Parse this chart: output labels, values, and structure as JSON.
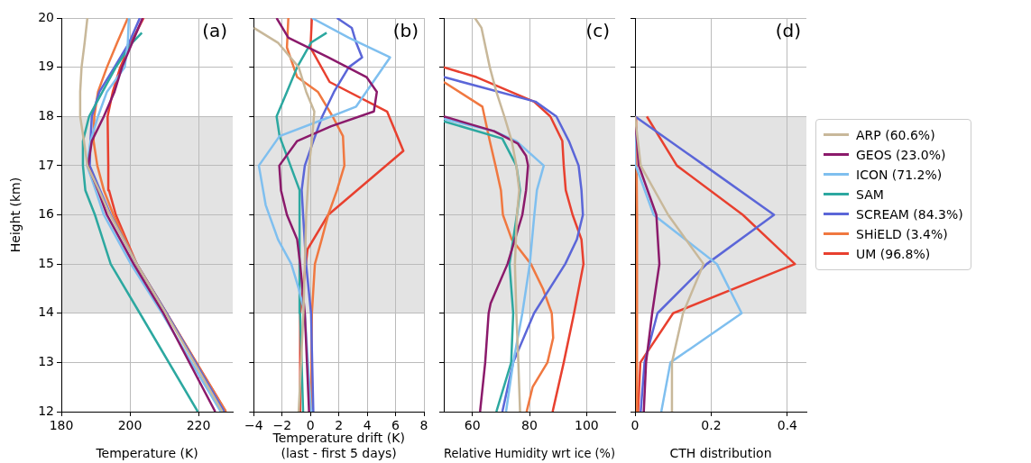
{
  "chart_data": [
    {
      "type": "line",
      "xlabel": "Temperature (K)",
      "ylabel": "Height (km)",
      "xlim": [
        180,
        230
      ],
      "xticks": [
        180,
        200,
        220
      ],
      "ylim": [
        12,
        20
      ],
      "yticks": [
        12,
        13,
        14,
        15,
        16,
        17,
        18,
        19,
        20
      ],
      "grid": true,
      "marker": "none",
      "bands": [
        {
          "axis": "y",
          "from": 14,
          "to": 18,
          "color": "#e3e3e3"
        }
      ],
      "annotations": [
        "(a)"
      ],
      "series": [
        {
          "color": "#c8b89a",
          "x": [
            227,
            210.5,
            202,
            194.2,
            191,
            187.6,
            186.6,
            185.5,
            185.5,
            185.9,
            186.8,
            187.6
          ],
          "values": [
            12,
            14,
            15,
            16,
            16.5,
            17,
            17.5,
            18,
            18.5,
            19,
            19.5,
            20
          ]
        },
        {
          "color": "#8b1a6b",
          "x": [
            224.9,
            209.8,
            201.1,
            193.3,
            190.7,
            187.8,
            188.9,
            192.4,
            195.5,
            197.7,
            200.7,
            203.7
          ],
          "values": [
            12,
            14,
            15,
            16,
            16.5,
            17,
            17.5,
            18,
            18.5,
            19,
            19.5,
            20
          ]
        },
        {
          "color": "#7fbfef",
          "x": [
            226.5,
            209.4,
            200.3,
            192.4,
            190,
            187.5,
            188.5,
            190.7,
            193.3,
            198.5,
            199.4,
            199.7
          ],
          "values": [
            12,
            14,
            15,
            16,
            16.5,
            17,
            17.5,
            18,
            18.5,
            19,
            19.5,
            20
          ]
        },
        {
          "color": "#2ca8a0",
          "x": [
            219.8,
            202.9,
            194.4,
            189.8,
            187,
            186.3,
            186.3,
            188.1,
            192,
            195.9,
            200.7,
            203.5
          ],
          "values": [
            12,
            14,
            15,
            16,
            16.5,
            17,
            17.5,
            18,
            18.5,
            19,
            19.5,
            19.7
          ]
        },
        {
          "color": "#5b66d8",
          "x": [
            227.5,
            210.7,
            202,
            194.4,
            191.3,
            188.3,
            188.5,
            188.9,
            191.1,
            195.5,
            199.8,
            202.9
          ],
          "values": [
            12,
            14,
            15,
            16,
            16.5,
            17,
            17.5,
            18,
            18.5,
            19,
            19.5,
            20
          ]
        },
        {
          "color": "#f07840",
          "x": [
            228,
            210.7,
            202,
            195.2,
            192.4,
            190.5,
            189.4,
            189.6,
            190.7,
            193.3,
            196.3,
            199.4
          ],
          "values": [
            12,
            14,
            15,
            16,
            16.5,
            17,
            17.5,
            18,
            18.5,
            19,
            19.5,
            20
          ]
        },
        {
          "color": "#e8402f",
          "x": [
            228,
            210.7,
            202,
            195.9,
            193.9,
            193.7,
            193.5,
            195,
            197.2,
            200.3,
            204
          ],
          "values": [
            12,
            14,
            15,
            16,
            16.5,
            17,
            18,
            18.5,
            19,
            19.5,
            20
          ]
        }
      ]
    },
    {
      "type": "line",
      "xlabel": "Temperature drift (K)\n(last - first 5 days)",
      "xlim": [
        -4,
        8
      ],
      "xticks": [
        {
          "value": -4,
          "label": "−4"
        },
        {
          "value": -2,
          "label": "−2"
        },
        0,
        2,
        4,
        6,
        8
      ],
      "ylim": [
        12,
        20
      ],
      "yticks": [
        12,
        13,
        14,
        15,
        16,
        17,
        18,
        19,
        20
      ],
      "tick_labels": "x",
      "grid": true,
      "marker": "none",
      "bands": [
        {
          "axis": "y",
          "from": 14,
          "to": 18,
          "color": "#e3e3e3"
        }
      ],
      "annotations": [
        "(b)"
      ],
      "series": [
        {
          "color": "#c8b89a",
          "x": [
            -0.83,
            -0.5,
            -0.4,
            -0.3,
            -0.1,
            0.1,
            0.27,
            -0.3,
            -0.83,
            -2.3,
            -4
          ],
          "values": [
            12,
            14,
            15,
            16,
            17,
            17.5,
            18.1,
            18.5,
            19,
            19.5,
            19.8
          ]
        },
        {
          "color": "#8b1a6b",
          "x": [
            -0.1,
            -0.25,
            -0.4,
            -0.73,
            -0.94,
            -1.66,
            -2.08,
            -2.2,
            -0.94,
            1.46,
            4.47,
            4.68,
            3.95,
            1.25,
            -1.56,
            -2.39
          ],
          "values": [
            12,
            13,
            14,
            15,
            15.5,
            16,
            16.5,
            17,
            17.5,
            17.8,
            18.1,
            18.5,
            18.8,
            19.2,
            19.6,
            20
          ]
        },
        {
          "color": "#7fbfef",
          "x": [
            0.04,
            -0.4,
            -0.83,
            -1.35,
            -2.29,
            -3.16,
            -3.64,
            -2.18,
            1.46,
            3.22,
            5.61,
            2.7,
            0.1
          ],
          "values": [
            12,
            14,
            14.5,
            15,
            15.5,
            16.2,
            17,
            17.6,
            18,
            18.2,
            19.2,
            19.6,
            20
          ]
        },
        {
          "color": "#2ca8a0",
          "x": [
            -0.52,
            -0.73,
            -0.77,
            -2.18,
            -2.39,
            -1.66,
            -0.94,
            0.04,
            1.14
          ],
          "values": [
            12,
            14,
            16.5,
            17.6,
            18,
            18.5,
            19,
            19.5,
            19.7
          ]
        },
        {
          "color": "#5b66d8",
          "x": [
            0.2,
            0.04,
            -0.31,
            -0.52,
            -0.62,
            -0.4,
            0.2,
            0.83,
            1.66,
            2.7,
            3.64,
            3.22,
            2.91,
            1.87
          ],
          "values": [
            12,
            14,
            15,
            16,
            16.5,
            17,
            17.5,
            18,
            18.5,
            19,
            19.2,
            19.5,
            19.8,
            20
          ]
        },
        {
          "color": "#f07840",
          "x": [
            0.04,
            0.1,
            0.31,
            0.79,
            1.25,
            1.87,
            2.39,
            2.29,
            1.56,
            0.52,
            -0.94,
            -1.66,
            -1.56
          ],
          "values": [
            12,
            14,
            15,
            15.5,
            16,
            16.5,
            17,
            17.6,
            18,
            18.5,
            18.8,
            19.4,
            20
          ]
        },
        {
          "color": "#e8402f",
          "x": [
            -0.73,
            -0.73,
            -0.21,
            1.25,
            6.55,
            5.4,
            1.35,
            0,
            0.1
          ],
          "values": [
            12,
            14,
            15.3,
            16,
            17.3,
            18.1,
            18.7,
            19.4,
            20
          ]
        }
      ]
    },
    {
      "type": "line",
      "xlabel": "Relative Humidity wrt ice (%)",
      "xlim": [
        50,
        110
      ],
      "xticks": [
        60,
        80,
        100
      ],
      "ylim": [
        12,
        20
      ],
      "yticks": [
        12,
        13,
        14,
        15,
        16,
        17,
        18,
        19,
        20
      ],
      "tick_labels": "x",
      "grid": true,
      "marker": "none",
      "bands": [
        {
          "axis": "y",
          "from": 14,
          "to": 18,
          "color": "#e3e3e3"
        }
      ],
      "annotations": [
        "(c)"
      ],
      "series": [
        {
          "color": "#c8b89a",
          "x": [
            76.7,
            76.1,
            75.4,
            74.9,
            75.6,
            76.4,
            75.4,
            73.8,
            71.2,
            68.4,
            66.1,
            63.2,
            60.9
          ],
          "values": [
            12,
            13,
            14,
            15,
            16,
            16.5,
            17,
            17.5,
            18,
            18.5,
            19,
            19.8,
            20
          ]
        },
        {
          "color": "#8b1a6b",
          "x": [
            62.7,
            64.5,
            65.7,
            66.4,
            72.3,
            77.5,
            78.8,
            79.5,
            78.8,
            75.9,
            67.6,
            50
          ],
          "values": [
            12,
            13,
            14,
            14.2,
            15,
            16,
            16.5,
            17,
            17.2,
            17.45,
            17.7,
            18
          ]
        },
        {
          "color": "#7fbfef",
          "x": [
            71.8,
            74.3,
            77.5,
            80.1,
            81.7,
            82.6,
            85,
            75.4,
            67.6,
            50
          ],
          "values": [
            12,
            13,
            14,
            15,
            16,
            16.5,
            17,
            17.5,
            17.7,
            17.95
          ]
        },
        {
          "color": "#2ca8a0",
          "x": [
            68.4,
            73.6,
            74.3,
            73,
            75.6,
            76.7,
            75.4,
            70.5,
            50
          ],
          "values": [
            12,
            13,
            14,
            15,
            16,
            16.5,
            17,
            17.55,
            17.9
          ]
        },
        {
          "color": "#5b66d8",
          "x": [
            70.5,
            74.3,
            81.6,
            92.5,
            96.6,
            98.7,
            98.2,
            97.2,
            93.8,
            89.4,
            82.1,
            50
          ],
          "values": [
            12,
            13,
            14,
            15,
            15.5,
            16,
            16.5,
            17,
            17.5,
            18,
            18.3,
            18.8
          ]
        },
        {
          "color": "#f07840",
          "x": [
            79,
            81.1,
            86.3,
            88.3,
            87.8,
            84.7,
            80.5,
            73.8,
            70.7,
            70,
            68.1,
            66.1,
            63.5,
            50
          ],
          "values": [
            12,
            12.5,
            13,
            13.5,
            14,
            14.5,
            15,
            15.5,
            16,
            16.5,
            17,
            17.5,
            18.2,
            18.7
          ]
        },
        {
          "color": "#e8402f",
          "x": [
            88.1,
            92,
            95.6,
            98.9,
            98.2,
            95.1,
            92.7,
            92,
            91.5,
            87.3,
            81.6,
            61.4,
            50
          ],
          "values": [
            12,
            13,
            14,
            15,
            15.5,
            16,
            16.5,
            17,
            17.5,
            18,
            18.3,
            18.8,
            19
          ]
        }
      ]
    },
    {
      "type": "line",
      "xlabel": "CTH distribution",
      "xlim": [
        0,
        0.45
      ],
      "xticks": [
        0,
        0.2,
        0.4
      ],
      "ylim": [
        12,
        20
      ],
      "yticks": [
        12,
        13,
        14,
        15,
        16,
        17,
        18,
        19,
        20
      ],
      "tick_labels": "x",
      "grid": true,
      "marker": "none",
      "legend": "right",
      "bands": [
        {
          "axis": "y",
          "from": 14,
          "to": 18,
          "color": "#e3e3e3"
        }
      ],
      "annotations": [
        "(d)"
      ],
      "series": [
        {
          "name": "ARP (60.6%)",
          "color": "#c8b89a",
          "x": [
            0.097,
            0.097,
            0.126,
            0.18,
            0.087,
            0.015,
            0
          ],
          "values": [
            12,
            13,
            14,
            15,
            16,
            17,
            18
          ]
        },
        {
          "name": "GEOS (23.0%)",
          "color": "#8b1a6b",
          "x": [
            0.023,
            0.029,
            0.045,
            0.064,
            0.056,
            0.01,
            0
          ],
          "values": [
            12,
            13,
            14,
            15,
            16,
            17,
            18
          ]
        },
        {
          "name": "ICON (71.2%)",
          "color": "#7fbfef",
          "x": [
            0.069,
            0.093,
            0.28,
            0.215,
            0.049,
            0.002,
            0
          ],
          "values": [
            12,
            13,
            14,
            15,
            16,
            17,
            18
          ]
        },
        {
          "name": "SAM",
          "color": "#2ca8a0"
        },
        {
          "name": "SCREAM (84.3%)",
          "color": "#5b66d8",
          "x": [
            0.015,
            0.025,
            0.059,
            0.188,
            0.365,
            0.183,
            0
          ],
          "values": [
            12,
            13,
            14,
            15,
            16,
            17,
            18
          ]
        },
        {
          "name": "SHiELD (3.4%)",
          "color": "#f07840",
          "x": [
            0.006,
            0.006,
            0.005,
            0.005,
            0.005,
            0.004,
            0.003
          ],
          "values": [
            12,
            13,
            14,
            15,
            16,
            17,
            18
          ]
        },
        {
          "name": "UM (96.8%)",
          "color": "#e8402f",
          "x": [
            0.008,
            0.014,
            0.1,
            0.42,
            0.283,
            0.11,
            0.031
          ],
          "values": [
            12,
            13,
            14,
            15,
            16,
            17,
            18
          ]
        }
      ]
    }
  ]
}
